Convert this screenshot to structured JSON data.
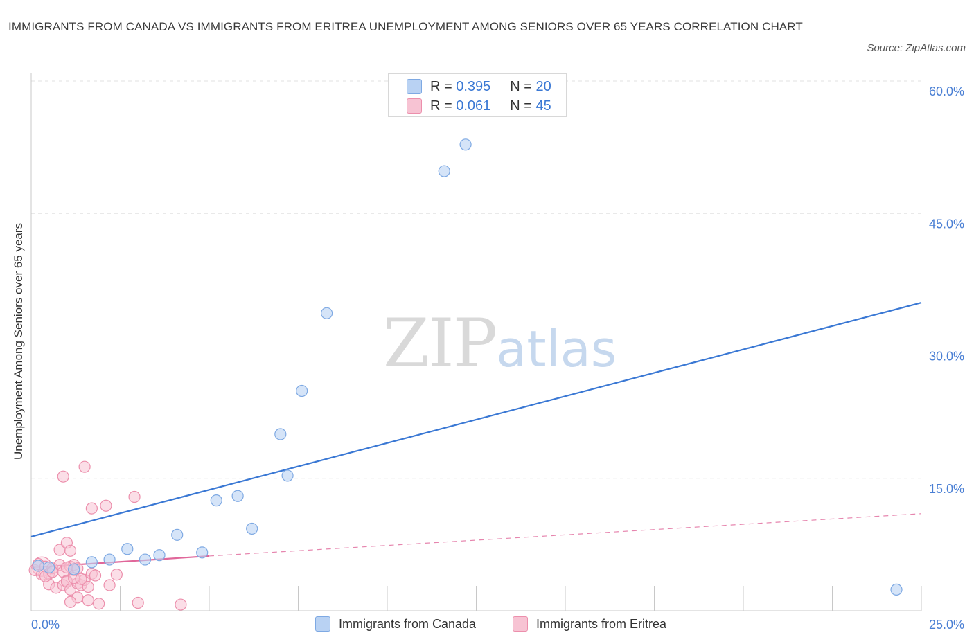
{
  "title": "IMMIGRANTS FROM CANADA VS IMMIGRANTS FROM ERITREA UNEMPLOYMENT AMONG SENIORS OVER 65 YEARS CORRELATION CHART",
  "source": "Source: ZipAtlas.com",
  "watermark": {
    "zip": "ZIP",
    "atlas": "atlas"
  },
  "legend": {
    "canada": {
      "r_label": "R =",
      "r_value": "0.395",
      "n_label": "N =",
      "n_value": "20"
    },
    "eritrea": {
      "r_label": "R =",
      "r_value": "0.061",
      "n_label": "N =",
      "n_value": "45"
    }
  },
  "colors": {
    "canada_fill": "#b9d2f3",
    "canada_stroke": "#7ea9e3",
    "canada_line": "#3a78d4",
    "eritrea_fill": "#f7c3d3",
    "eritrea_stroke": "#ec8fac",
    "eritrea_line": "#e0679a"
  },
  "chart_data": {
    "type": "scatter",
    "title": "IMMIGRANTS FROM CANADA VS IMMIGRANTS FROM ERITREA UNEMPLOYMENT AMONG SENIORS OVER 65 YEARS CORRELATION CHART",
    "xlabel": "",
    "ylabel": "Unemployment Among Seniors over 65 years",
    "xlim": [
      0,
      25
    ],
    "ylim": [
      0,
      60
    ],
    "x_tick_labels": [
      "0.0%",
      "25.0%"
    ],
    "y_ticks": [
      15,
      30,
      45,
      60
    ],
    "y_tick_labels": [
      "15.0%",
      "30.0%",
      "45.0%",
      "60.0%"
    ],
    "series": [
      {
        "name": "Immigrants from Canada",
        "points": [
          [
            0.2,
            5.1
          ],
          [
            0.5,
            4.9
          ],
          [
            1.2,
            4.7
          ],
          [
            1.7,
            5.5
          ],
          [
            2.2,
            5.8
          ],
          [
            2.7,
            7.0
          ],
          [
            3.2,
            5.8
          ],
          [
            3.6,
            6.3
          ],
          [
            4.1,
            8.6
          ],
          [
            4.8,
            6.6
          ],
          [
            5.2,
            12.5
          ],
          [
            5.8,
            13.0
          ],
          [
            6.2,
            9.3
          ],
          [
            7.2,
            15.3
          ],
          [
            7.0,
            20.0
          ],
          [
            7.6,
            24.9
          ],
          [
            8.3,
            33.7
          ],
          [
            11.6,
            49.8
          ],
          [
            12.2,
            52.8
          ],
          [
            24.3,
            2.4
          ]
        ],
        "trend": {
          "x": [
            0,
            25
          ],
          "y": [
            8.4,
            34.9
          ],
          "style": "solid"
        }
      },
      {
        "name": "Immigrants from Eritrea",
        "points": [
          [
            0.1,
            4.6
          ],
          [
            0.2,
            5.3
          ],
          [
            0.3,
            4.1
          ],
          [
            0.4,
            5.0
          ],
          [
            0.5,
            4.2
          ],
          [
            0.5,
            3.0
          ],
          [
            0.6,
            4.8
          ],
          [
            0.7,
            2.6
          ],
          [
            0.8,
            5.2
          ],
          [
            0.9,
            4.4
          ],
          [
            1.0,
            3.4
          ],
          [
            1.1,
            5.0
          ],
          [
            1.2,
            4.6
          ],
          [
            0.9,
            2.9
          ],
          [
            1.0,
            3.3
          ],
          [
            1.1,
            2.4
          ],
          [
            1.3,
            3.1
          ],
          [
            1.4,
            2.9
          ],
          [
            1.5,
            3.5
          ],
          [
            1.6,
            2.7
          ],
          [
            1.7,
            4.2
          ],
          [
            1.8,
            4.0
          ],
          [
            0.8,
            6.9
          ],
          [
            1.0,
            7.7
          ],
          [
            1.1,
            6.8
          ],
          [
            1.2,
            3.7
          ],
          [
            1.3,
            1.5
          ],
          [
            1.6,
            1.2
          ],
          [
            1.9,
            0.8
          ],
          [
            2.2,
            2.9
          ],
          [
            2.4,
            4.1
          ],
          [
            3.0,
            0.9
          ],
          [
            4.2,
            0.7
          ],
          [
            0.9,
            15.2
          ],
          [
            1.5,
            16.3
          ],
          [
            1.7,
            11.6
          ],
          [
            2.1,
            11.9
          ],
          [
            2.9,
            12.9
          ],
          [
            1.1,
            1.0
          ],
          [
            0.4,
            3.9
          ],
          [
            1.4,
            3.6
          ],
          [
            0.6,
            4.4
          ],
          [
            1.2,
            5.2
          ],
          [
            1.0,
            4.9
          ],
          [
            1.3,
            4.8
          ]
        ],
        "trend": {
          "x": [
            0,
            5
          ],
          "y": [
            4.9,
            6.2
          ],
          "style": "solid",
          "extended": {
            "x": [
              5,
              25
            ],
            "y": [
              6.2,
              11.0
            ],
            "style": "dashed"
          }
        }
      }
    ]
  }
}
